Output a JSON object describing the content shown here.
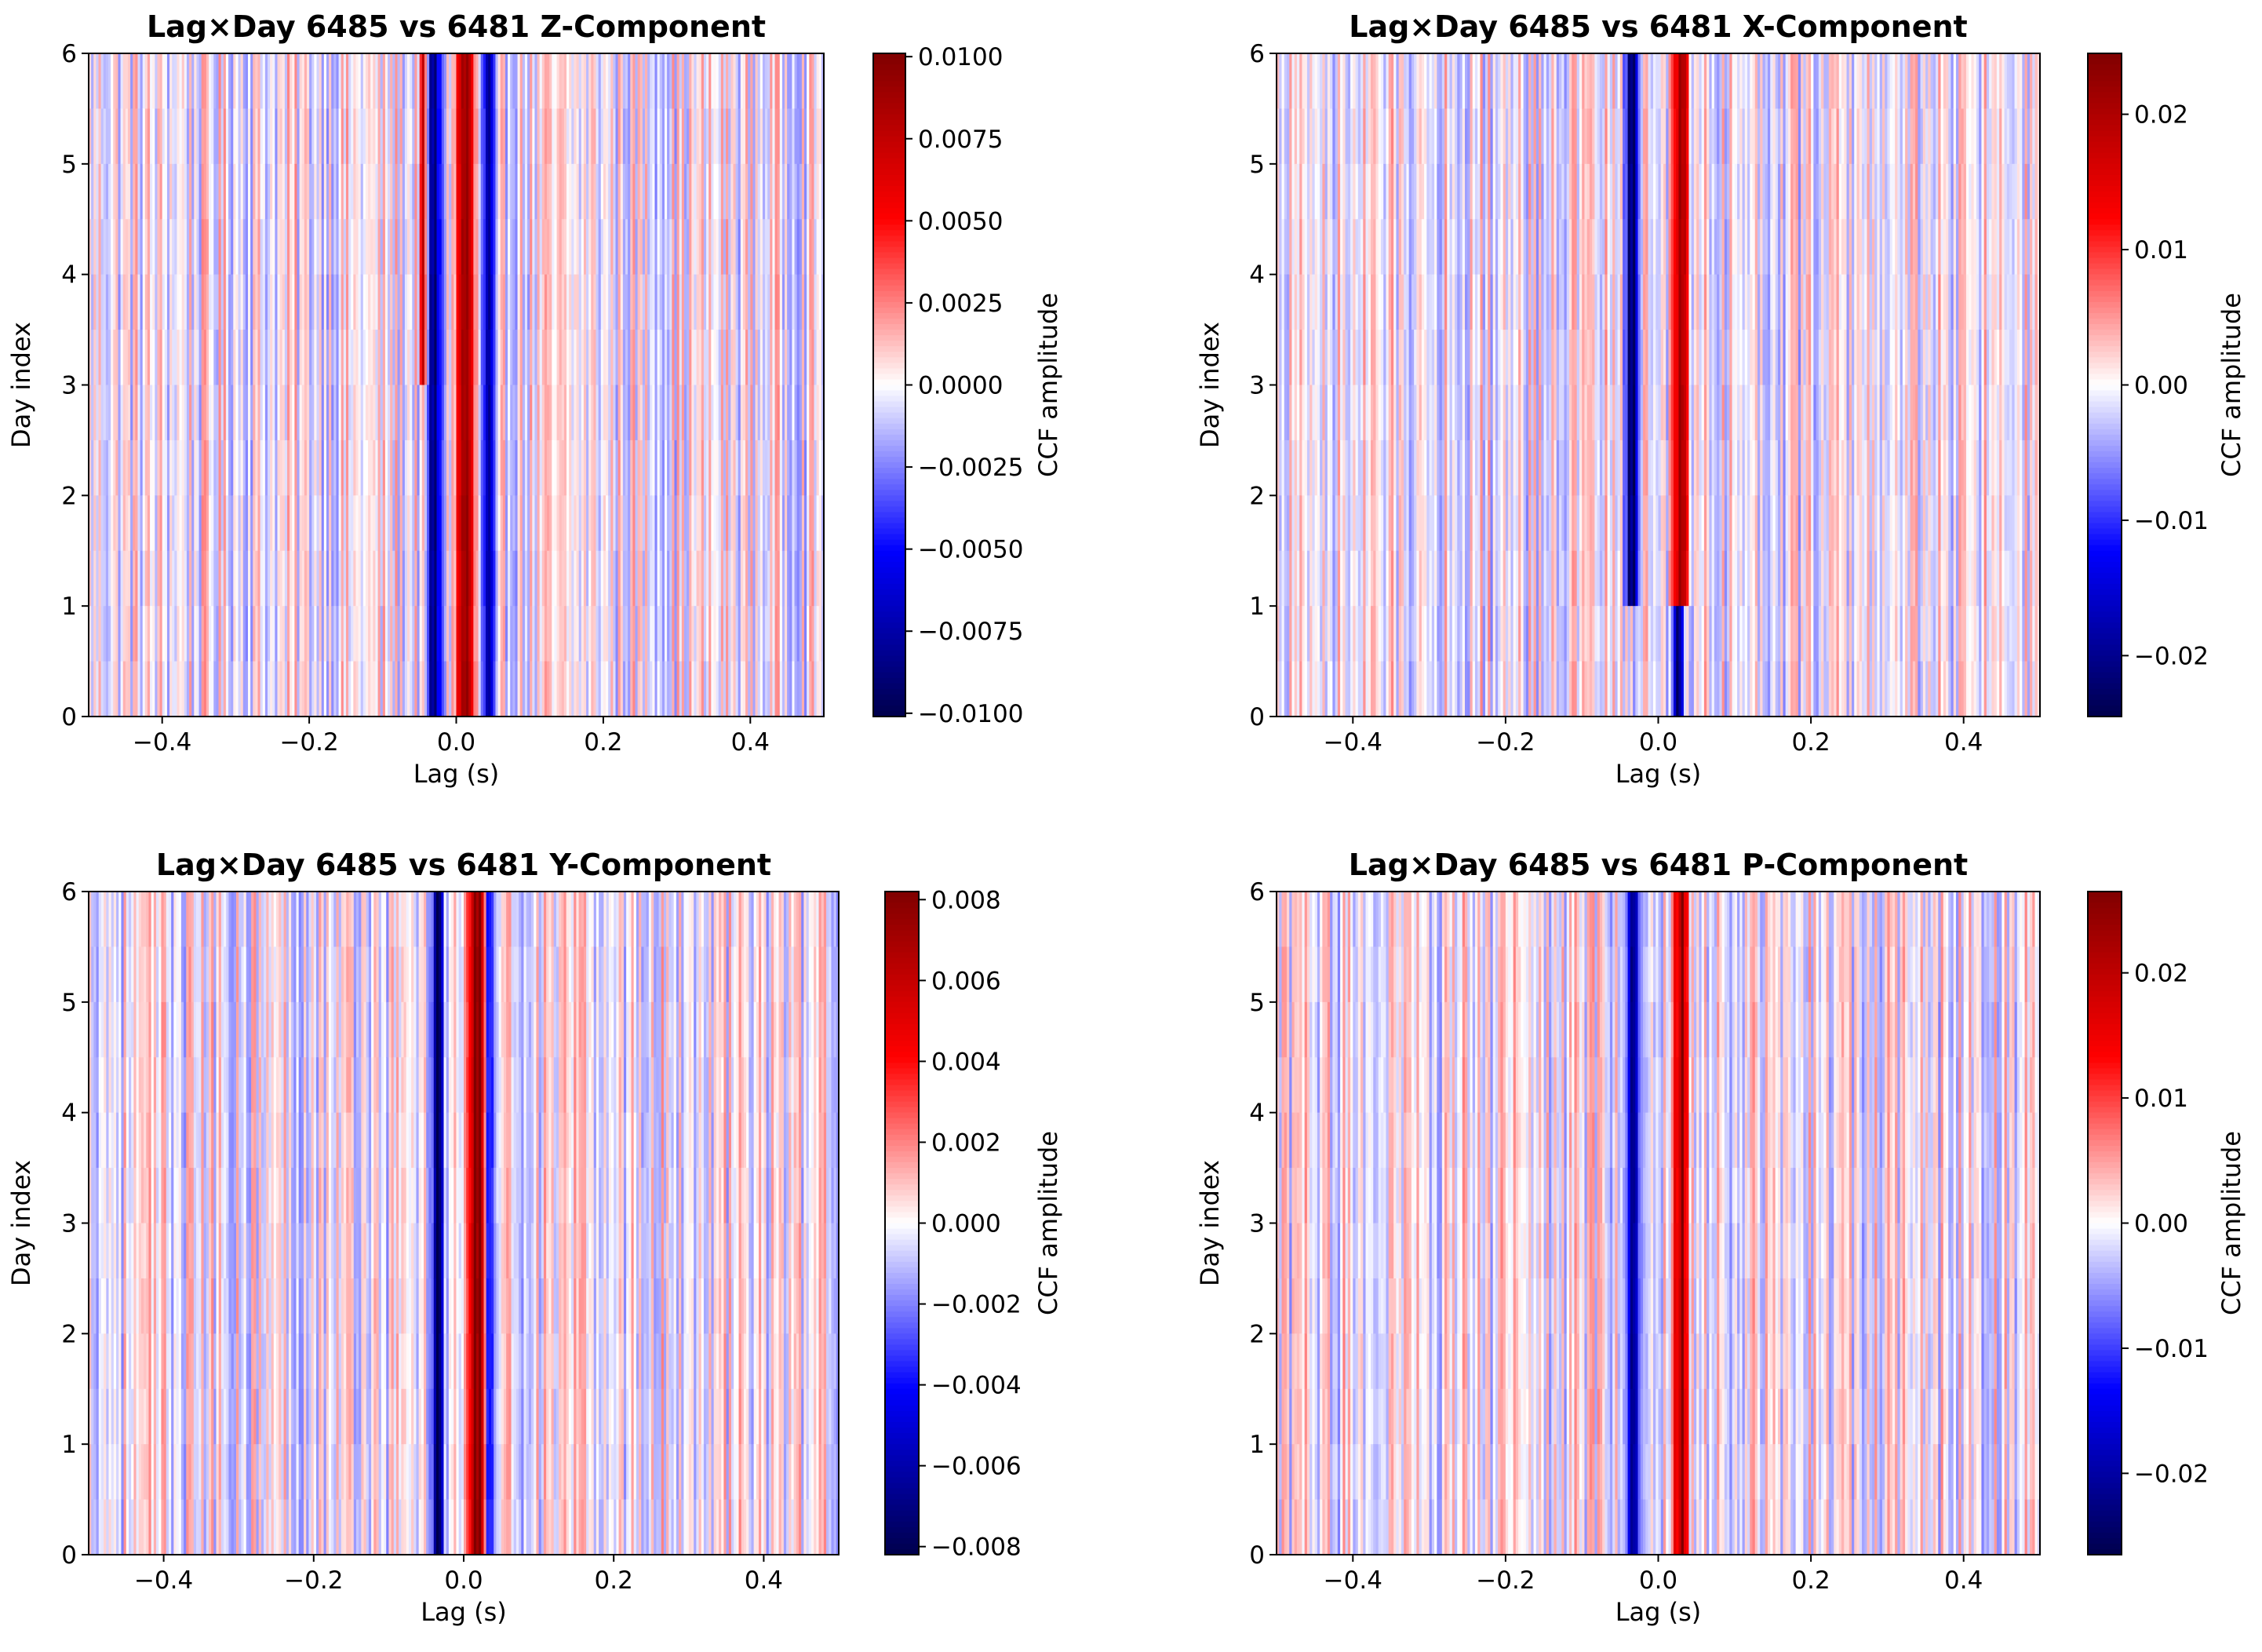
{
  "chart_data": [
    {
      "type": "heatmap",
      "title": "Lag×Day  6485 vs 6481 Z-Component",
      "xlabel": "Lag (s)",
      "ylabel": "Day index",
      "xlim": [
        -0.5,
        0.5
      ],
      "ylim": [
        0,
        6
      ],
      "xticks": [
        -0.4,
        -0.2,
        0.0,
        0.2,
        0.4
      ],
      "xtick_labels": [
        "−0.4",
        "−0.2",
        "0.0",
        "0.2",
        "0.4"
      ],
      "yticks": [
        0,
        1,
        2,
        3,
        4,
        5,
        6
      ],
      "ytick_labels": [
        "0",
        "1",
        "2",
        "3",
        "4",
        "5",
        "6"
      ],
      "colormap": "seismic",
      "colorbar": {
        "label": "CCF amplitude",
        "vmin": -0.0101,
        "vmax": 0.0101,
        "ticks": [
          0.01,
          0.0075,
          0.005,
          0.0025,
          0,
          -0.0025,
          -0.005,
          -0.0075,
          -0.01
        ],
        "tick_labels": [
          "0.0100",
          "0.0075",
          "0.0050",
          "0.0025",
          "0.0000",
          "−0.0025",
          "−0.0050",
          "−0.0075",
          "−0.0100"
        ]
      },
      "features": [
        {
          "lag": -0.045,
          "amplitude": 0.0065,
          "width": 0.005,
          "day_from": 3.0,
          "day_to": 6.0,
          "note": "red band"
        },
        {
          "lag": -0.03,
          "amplitude": -0.009,
          "width": 0.01,
          "day_from": 0.0,
          "day_to": 6.0,
          "note": "dark blue band"
        },
        {
          "lag": 0.012,
          "amplitude": 0.009,
          "width": 0.012,
          "day_from": 0.0,
          "day_to": 6.0,
          "note": "dark red band"
        },
        {
          "lag": 0.045,
          "amplitude": -0.0085,
          "width": 0.01,
          "day_from": 0.0,
          "day_to": 6.0,
          "note": "dark blue band"
        }
      ]
    },
    {
      "type": "heatmap",
      "title": "Lag×Day  6485 vs 6481 X-Component",
      "xlabel": "Lag (s)",
      "ylabel": "Day index",
      "xlim": [
        -0.5,
        0.5
      ],
      "ylim": [
        0,
        6
      ],
      "xticks": [
        -0.4,
        -0.2,
        0.0,
        0.2,
        0.4
      ],
      "xtick_labels": [
        "−0.4",
        "−0.2",
        "0.0",
        "0.2",
        "0.4"
      ],
      "yticks": [
        0,
        1,
        2,
        3,
        4,
        5,
        6
      ],
      "ytick_labels": [
        "0",
        "1",
        "2",
        "3",
        "4",
        "5",
        "6"
      ],
      "colormap": "seismic",
      "colorbar": {
        "label": "CCF amplitude",
        "vmin": -0.0245,
        "vmax": 0.0245,
        "ticks": [
          0.02,
          0.01,
          0,
          -0.01,
          -0.02
        ],
        "tick_labels": [
          "0.02",
          "0.01",
          "0.00",
          "−0.01",
          "−0.02"
        ]
      },
      "features": [
        {
          "lag": -0.035,
          "amplitude": -0.022,
          "width": 0.008,
          "day_from": 0.8,
          "day_to": 6.0,
          "note": "dark blue band"
        },
        {
          "lag": 0.03,
          "amplitude": 0.022,
          "width": 0.009,
          "day_from": 0.8,
          "day_to": 6.0,
          "note": "dark red band"
        },
        {
          "lag": 0.025,
          "amplitude": -0.022,
          "width": 0.008,
          "day_from": 0.0,
          "day_to": 0.9,
          "note": "blue patch"
        }
      ]
    },
    {
      "type": "heatmap",
      "title": "Lag×Day  6485 vs 6481 Y-Component",
      "xlabel": "Lag (s)",
      "ylabel": "Day index",
      "xlim": [
        -0.5,
        0.5
      ],
      "ylim": [
        0,
        6
      ],
      "xticks": [
        -0.4,
        -0.2,
        0.0,
        0.2,
        0.4
      ],
      "xtick_labels": [
        "−0.4",
        "−0.2",
        "0.0",
        "0.2",
        "0.4"
      ],
      "yticks": [
        0,
        1,
        2,
        3,
        4,
        5,
        6
      ],
      "ytick_labels": [
        "0",
        "1",
        "2",
        "3",
        "4",
        "5",
        "6"
      ],
      "colormap": "seismic",
      "colorbar": {
        "label": "CCF amplitude",
        "vmin": -0.0082,
        "vmax": 0.0082,
        "ticks": [
          0.008,
          0.006,
          0.004,
          0.002,
          0,
          -0.002,
          -0.004,
          -0.006,
          -0.008
        ],
        "tick_labels": [
          "0.008",
          "0.006",
          "0.004",
          "0.002",
          "0.000",
          "−0.002",
          "−0.004",
          "−0.006",
          "−0.008"
        ]
      },
      "features": [
        {
          "lag": -0.035,
          "amplitude": -0.0075,
          "width": 0.008,
          "day_from": 0.0,
          "day_to": 6.0,
          "note": "dark blue band"
        },
        {
          "lag": 0.02,
          "amplitude": 0.0078,
          "width": 0.012,
          "day_from": 0.0,
          "day_to": 6.0,
          "note": "dark red band"
        },
        {
          "lag": 0.035,
          "amplitude": -0.007,
          "width": 0.006,
          "day_from": 0.0,
          "day_to": 6.0,
          "note": "dark blue band"
        }
      ]
    },
    {
      "type": "heatmap",
      "title": "Lag×Day  6485 vs 6481 P-Component",
      "xlabel": "Lag (s)",
      "ylabel": "Day index",
      "xlim": [
        -0.5,
        0.5
      ],
      "ylim": [
        0,
        6
      ],
      "xticks": [
        -0.4,
        -0.2,
        0.0,
        0.2,
        0.4
      ],
      "xtick_labels": [
        "−0.4",
        "−0.2",
        "0.0",
        "0.2",
        "0.4"
      ],
      "yticks": [
        0,
        1,
        2,
        3,
        4,
        5,
        6
      ],
      "ytick_labels": [
        "0",
        "1",
        "2",
        "3",
        "4",
        "5",
        "6"
      ],
      "colormap": "seismic",
      "colorbar": {
        "label": "CCF amplitude",
        "vmin": -0.0265,
        "vmax": 0.0265,
        "ticks": [
          0.02,
          0.01,
          0,
          -0.01,
          -0.02
        ],
        "tick_labels": [
          "0.02",
          "0.01",
          "0.00",
          "−0.01",
          "−0.02"
        ]
      },
      "features": [
        {
          "lag": -0.035,
          "amplitude": -0.024,
          "width": 0.008,
          "day_from": 0.0,
          "day_to": 6.0,
          "note": "dark blue band"
        },
        {
          "lag": 0.03,
          "amplitude": 0.024,
          "width": 0.009,
          "day_from": 0.0,
          "day_to": 6.0,
          "note": "dark red band"
        }
      ]
    }
  ]
}
